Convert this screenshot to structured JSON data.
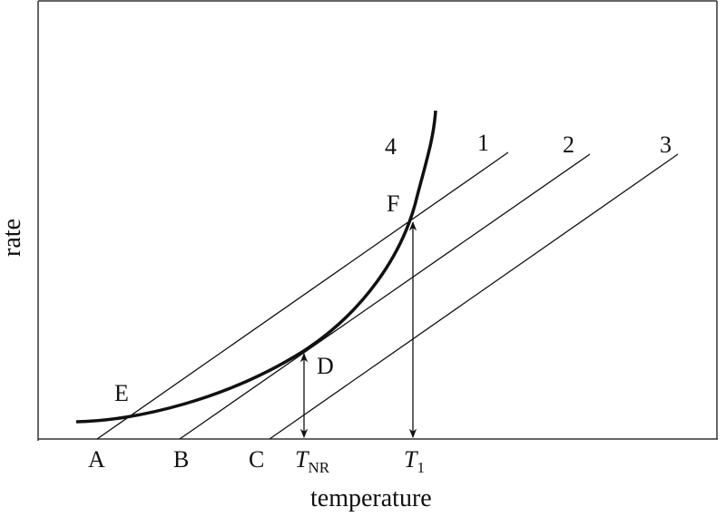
{
  "axes": {
    "x_label": "temperature",
    "y_label": "rate"
  },
  "lines": [
    {
      "label": "1",
      "start_point": "A"
    },
    {
      "label": "2",
      "start_point": "B"
    },
    {
      "label": "3",
      "start_point": "C"
    }
  ],
  "curve": {
    "label": "4"
  },
  "points": {
    "A": "A",
    "B": "B",
    "C": "C",
    "D": "D",
    "E": "E",
    "F": "F"
  },
  "temperatures": {
    "t_nr": {
      "symbol": "T",
      "subscript": "NR"
    },
    "t_1": {
      "symbol": "T",
      "subscript": "1"
    }
  },
  "colors": {
    "ink": "#111111",
    "background": "#ffffff"
  }
}
